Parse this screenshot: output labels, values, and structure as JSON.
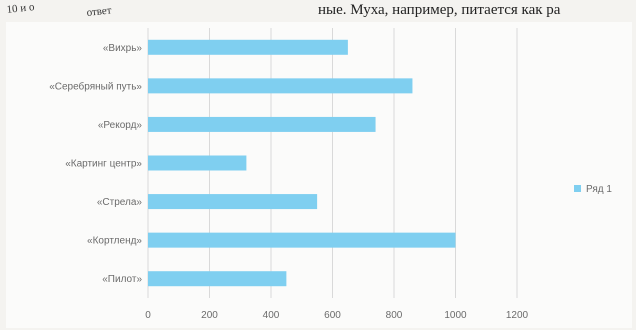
{
  "header": {
    "left_fragment_1": "10 и о",
    "left_fragment_2": "ответ",
    "right_text": "ные. Муха, например, питается как ра"
  },
  "chart_data": {
    "type": "bar",
    "orientation": "horizontal",
    "categories": [
      "«Вихрь»",
      "«Серебряный путь»",
      "«Рекорд»",
      "«Картинг центр»",
      "«Стрела»",
      "«Кортленд»",
      "«Пилот»"
    ],
    "series": [
      {
        "name": "Ряд 1",
        "values": [
          650,
          860,
          740,
          320,
          550,
          1000,
          450
        ],
        "color": "#7fcff0"
      }
    ],
    "xlim": [
      0,
      1200
    ],
    "xticks": [
      0,
      200,
      400,
      600,
      800,
      1000,
      1200
    ],
    "grid": true,
    "legend_position": "right"
  }
}
